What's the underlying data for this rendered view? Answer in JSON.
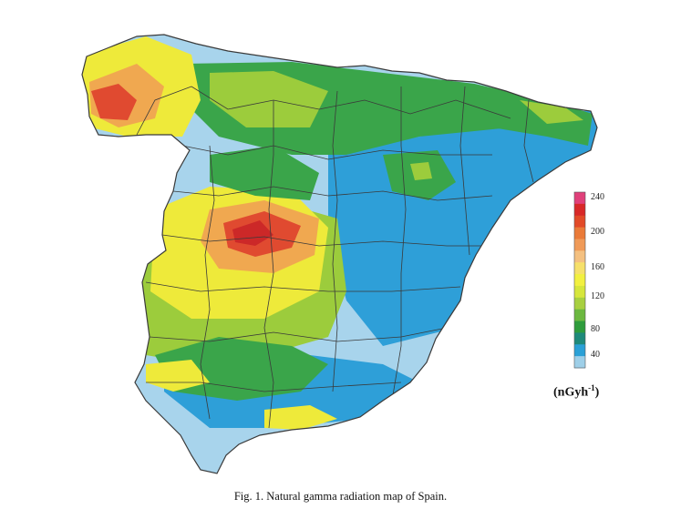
{
  "legend": {
    "ticks": [
      "240",
      "200",
      "160",
      "120",
      "80",
      "40"
    ],
    "unit_prefix": "(nGyh",
    "unit_exp": "-1",
    "unit_suffix": ")",
    "colors": [
      "#e0407a",
      "#d82828",
      "#e24a28",
      "#ea7a38",
      "#f09a58",
      "#f4c080",
      "#f6e06a",
      "#f2f040",
      "#d6e63c",
      "#a8d040",
      "#6cb840",
      "#2e9c3c",
      "#1e8a7a",
      "#2aa0d6",
      "#9ecfe8"
    ]
  },
  "caption": "Fig. 1. Natural gamma radiation map of Spain.",
  "palette": {
    "very_low": "#a8d4ec",
    "low": "#2e9fd8",
    "low_mid": "#3aa54a",
    "mid": "#9ccc3c",
    "mid_high": "#eeea3a",
    "high": "#f0a850",
    "very_high": "#e04a30",
    "peak": "#cc2828",
    "border": "#3a3a3a"
  }
}
